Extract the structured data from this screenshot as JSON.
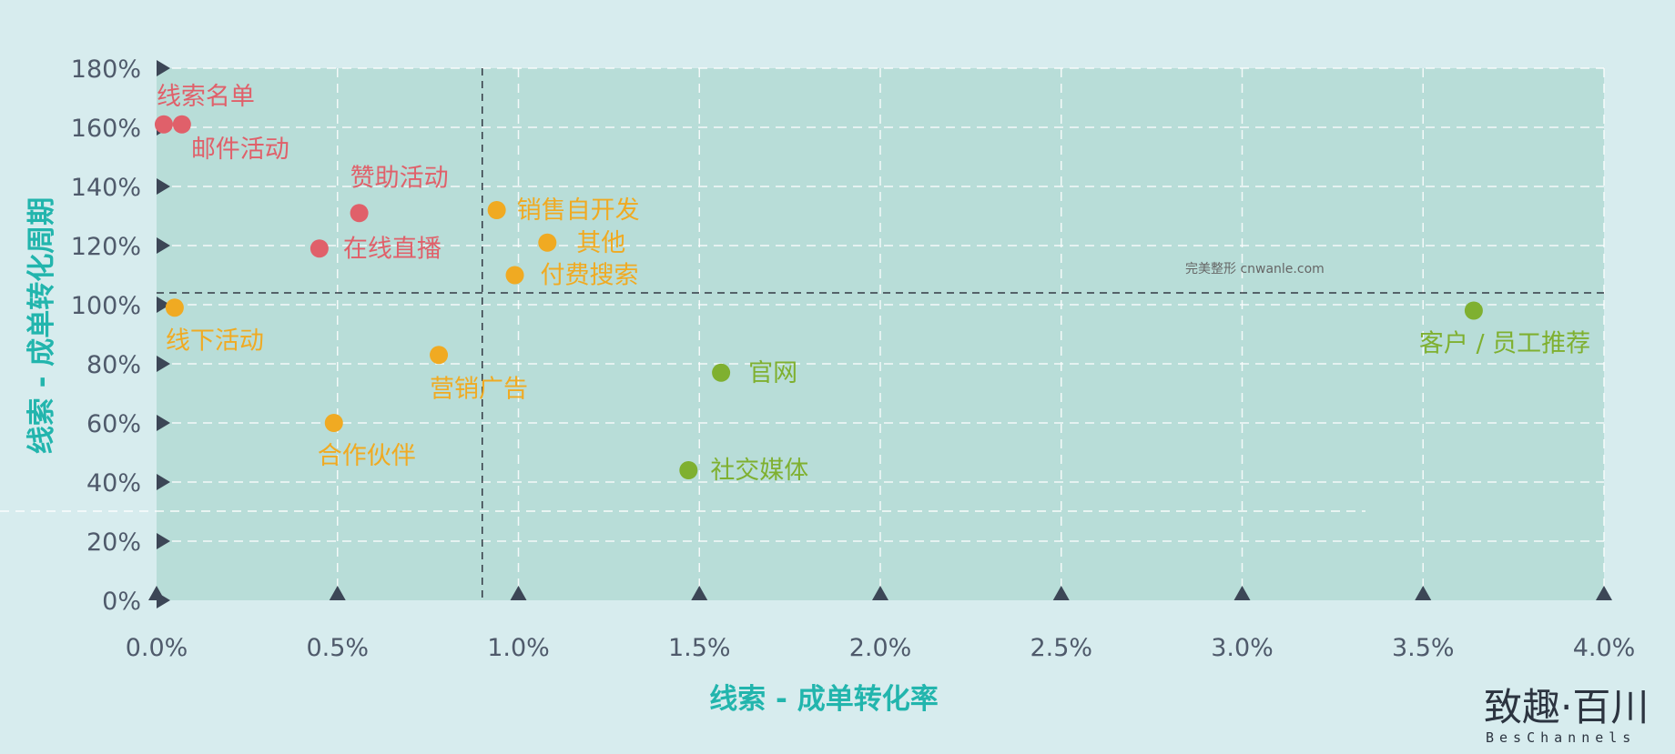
{
  "chart_data": {
    "type": "scatter",
    "xlabel": "线索 - 成单转化率",
    "ylabel": "线索 - 成单转化周期",
    "xlim": [
      0,
      4.0
    ],
    "ylim": [
      0,
      180
    ],
    "x_ticks": [
      "0.0%",
      "0.5%",
      "1.0%",
      "1.5%",
      "2.0%",
      "2.5%",
      "3.0%",
      "3.5%",
      "4.0%"
    ],
    "y_ticks": [
      "0%",
      "20%",
      "40%",
      "60%",
      "80%",
      "100%",
      "120%",
      "140%",
      "160%",
      "180%"
    ],
    "grid": true,
    "reference_lines": {
      "x": 0.9,
      "y": 104
    },
    "colors": {
      "red": "#e0606a",
      "orange": "#f0aa22",
      "green": "#7fb030",
      "plot_bg": "#b8ddd8",
      "page_bg": "#d7ecee"
    },
    "points": [
      {
        "label": "线索名单",
        "x": 0.02,
        "y": 161,
        "color": "red"
      },
      {
        "label": "邮件活动",
        "x": 0.07,
        "y": 161,
        "color": "red"
      },
      {
        "label": "赞助活动",
        "x": 0.56,
        "y": 131,
        "color": "red"
      },
      {
        "label": "在线直播",
        "x": 0.45,
        "y": 119,
        "color": "red"
      },
      {
        "label": "销售自开发",
        "x": 0.94,
        "y": 132,
        "color": "orange"
      },
      {
        "label": "其他",
        "x": 1.08,
        "y": 121,
        "color": "orange"
      },
      {
        "label": "付费搜索",
        "x": 0.99,
        "y": 110,
        "color": "orange"
      },
      {
        "label": "线下活动",
        "x": 0.05,
        "y": 99,
        "color": "orange"
      },
      {
        "label": "营销广告",
        "x": 0.78,
        "y": 83,
        "color": "orange"
      },
      {
        "label": "合作伙伴",
        "x": 0.49,
        "y": 60,
        "color": "orange"
      },
      {
        "label": "官网",
        "x": 1.56,
        "y": 77,
        "color": "green"
      },
      {
        "label": "社交媒体",
        "x": 1.47,
        "y": 44,
        "color": "green"
      },
      {
        "label": "客户 / 员工推荐",
        "x": 3.64,
        "y": 98,
        "color": "green"
      }
    ]
  },
  "watermark": "完美整形 cnwanle.com",
  "logo": {
    "main": "致趣·百川",
    "sub": "BesChannels"
  }
}
